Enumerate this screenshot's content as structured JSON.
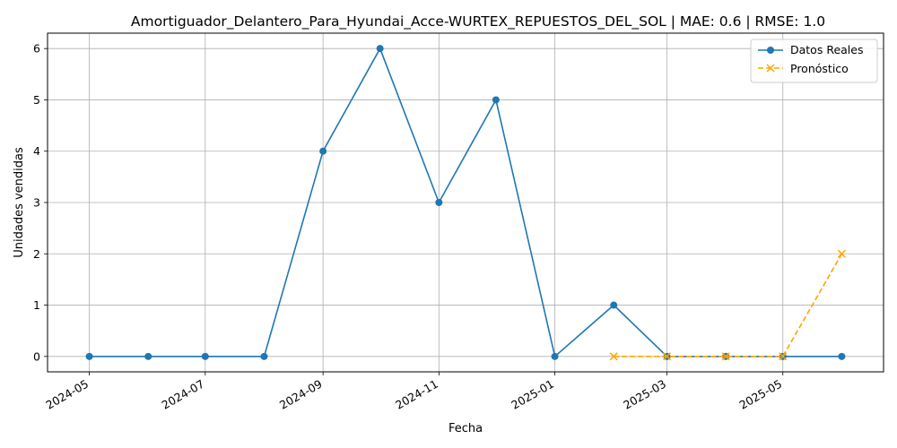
{
  "chart_data": {
    "type": "line",
    "title": "Amortiguador_Delantero_Para_Hyundai_Acce-WURTEX_REPUESTOS_DEL_SOL | MAE: 0.6 | RMSE: 1.0",
    "xlabel": "Fecha",
    "ylabel": "Unidades vendidas",
    "x_ticks": [
      "2024-05",
      "2024-07",
      "2024-09",
      "2024-11",
      "2025-01",
      "2025-03",
      "2025-05"
    ],
    "y_ticks": [
      "0",
      "1",
      "2",
      "3",
      "4",
      "5",
      "6"
    ],
    "ylim": [
      -0.3,
      6.3
    ],
    "xlim": [
      "2024-04-09",
      "2025-06-23"
    ],
    "grid": true,
    "legend_position": "top-right",
    "series": [
      {
        "name": "Datos Reales",
        "color": "#1f77b4",
        "marker": "circle",
        "line_style": "solid",
        "x": [
          "2024-05-01",
          "2024-06-01",
          "2024-07-01",
          "2024-08-01",
          "2024-09-01",
          "2024-10-01",
          "2024-11-01",
          "2024-12-01",
          "2025-01-01",
          "2025-02-01",
          "2025-03-01",
          "2025-04-01",
          "2025-05-01",
          "2025-06-01"
        ],
        "values": [
          0,
          0,
          0,
          0,
          4,
          6,
          3,
          5,
          0,
          1,
          0,
          0,
          0,
          0
        ]
      },
      {
        "name": "Pronóstico",
        "color": "#ffa500",
        "marker": "x",
        "line_style": "dashed",
        "x": [
          "2025-02-01",
          "2025-03-01",
          "2025-04-01",
          "2025-05-01",
          "2025-06-01"
        ],
        "values": [
          0,
          0,
          0,
          0,
          2
        ]
      }
    ]
  }
}
